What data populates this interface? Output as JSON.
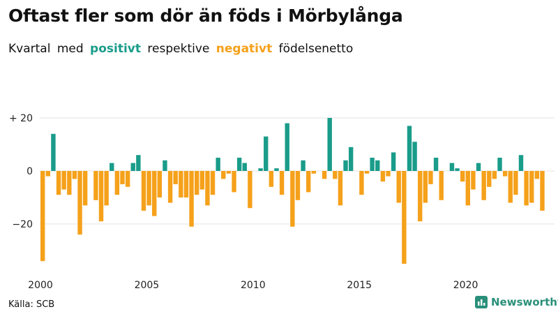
{
  "chart_data": {
    "type": "bar",
    "title": "Oftast fler som dör än föds i Mörbylånga",
    "subtitle_parts": [
      "Kvartal",
      "med",
      "positivt",
      "respektive",
      "negativt",
      "födelsenetto"
    ],
    "start_year": 2000,
    "x_ticks": [
      "2000",
      "2005",
      "2010",
      "2015",
      "2020"
    ],
    "y_ticks": [
      "+ 20",
      "0",
      "−20"
    ],
    "y_tick_values": [
      20,
      0,
      -20
    ],
    "ylim": [
      -36,
      21
    ],
    "values": [
      -34,
      -2,
      14,
      -9,
      -7,
      -9,
      -3,
      -24,
      -13,
      0,
      -11,
      -19,
      -13,
      3,
      -9,
      -5,
      -6,
      3,
      6,
      -15,
      -13,
      -17,
      -10,
      4,
      -12,
      -5,
      -10,
      -10,
      -21,
      -9,
      -7,
      -13,
      -9,
      5,
      -3,
      -1,
      -8,
      5,
      3,
      -14,
      0,
      1,
      13,
      -6,
      1,
      -9,
      18,
      -21,
      -11,
      4,
      -8,
      -1,
      0,
      -3,
      20,
      -3,
      -13,
      4,
      9,
      0,
      -9,
      -1,
      5,
      4,
      -4,
      -2,
      7,
      -12,
      -35,
      17,
      11,
      -19,
      -12,
      -5,
      5,
      -11,
      0,
      3,
      1,
      -4,
      -13,
      -7,
      3,
      -11,
      -6,
      -3,
      5,
      -2,
      -12,
      -9,
      6,
      -13,
      -12,
      -3,
      -15
    ],
    "colors": {
      "positive": "#1a9c8a",
      "negative": "#f5a11b"
    }
  },
  "source": "Källa: SCB",
  "brand": {
    "name": "Newsworthy"
  }
}
